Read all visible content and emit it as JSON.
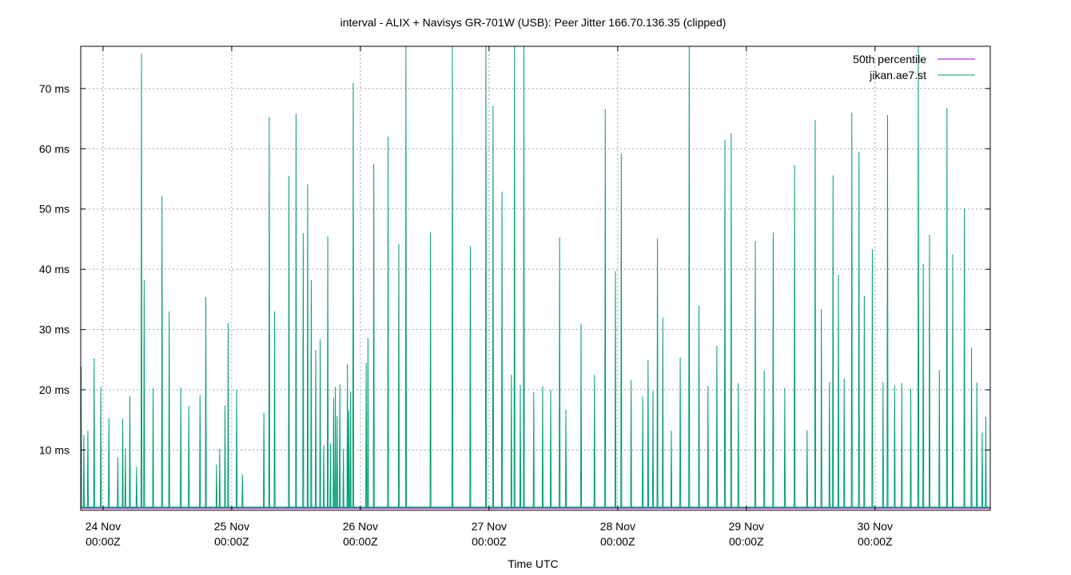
{
  "chart_data": {
    "type": "line",
    "title": "interval - ALIX + Navisys GR-701W (USB): Peer Jitter 166.70.136.35 (clipped)",
    "xlabel": "Time UTC",
    "ylabel": "",
    "ylim": [
      0,
      77
    ],
    "xlim": [
      "2023-11-23T19:50Z",
      "2023-11-30T21:30Z"
    ],
    "grid": true,
    "legend_position": "top-right",
    "y_ticks": [
      {
        "value": 10,
        "label": "10 ms"
      },
      {
        "value": 20,
        "label": "20 ms"
      },
      {
        "value": 30,
        "label": "30 ms"
      },
      {
        "value": 40,
        "label": "40 ms"
      },
      {
        "value": 50,
        "label": "50 ms"
      },
      {
        "value": 60,
        "label": "60 ms"
      },
      {
        "value": 70,
        "label": "70 ms"
      }
    ],
    "x_ticks": [
      {
        "time": "2023-11-24T00:00Z",
        "line1": "24 Nov",
        "line2": "00:00Z"
      },
      {
        "time": "2023-11-25T00:00Z",
        "line1": "25 Nov",
        "line2": "00:00Z"
      },
      {
        "time": "2023-11-26T00:00Z",
        "line1": "26 Nov",
        "line2": "00:00Z"
      },
      {
        "time": "2023-11-27T00:00Z",
        "line1": "27 Nov",
        "line2": "00:00Z"
      },
      {
        "time": "2023-11-28T00:00Z",
        "line1": "28 Nov",
        "line2": "00:00Z"
      },
      {
        "time": "2023-11-29T00:00Z",
        "line1": "29 Nov",
        "line2": "00:00Z"
      },
      {
        "time": "2023-11-30T00:00Z",
        "line1": "30 Nov",
        "line2": "00:00Z"
      }
    ],
    "series": [
      {
        "name": "50th percentile",
        "color": "#9400d3",
        "x": [
          "2023-11-23T19:50Z",
          "2023-11-30T21:30Z"
        ],
        "values": [
          0.3,
          0.3
        ]
      },
      {
        "name": "jikan.ae7.st",
        "color": "#009e73",
        "x": [
          "2023-11-23T19:55Z",
          "2023-11-23T20:25Z",
          "2023-11-23T21:10Z",
          "2023-11-23T22:20Z",
          "2023-11-23T23:35Z",
          "2023-11-24T01:05Z",
          "2023-11-24T02:45Z",
          "2023-11-24T03:40Z",
          "2023-11-24T04:10Z",
          "2023-11-24T05:00Z",
          "2023-11-24T06:15Z",
          "2023-11-24T07:10Z",
          "2023-11-24T07:40Z",
          "2023-11-24T09:20Z",
          "2023-11-24T11:00Z",
          "2023-11-24T12:20Z",
          "2023-11-24T14:30Z",
          "2023-11-24T16:00Z",
          "2023-11-24T18:05Z",
          "2023-11-24T19:10Z",
          "2023-11-24T21:10Z",
          "2023-11-24T21:45Z",
          "2023-11-24T22:45Z",
          "2023-11-24T23:20Z",
          "2023-11-25T00:55Z",
          "2023-11-25T02:00Z",
          "2023-11-25T06:00Z",
          "2023-11-25T07:00Z",
          "2023-11-25T08:00Z",
          "2023-11-25T10:40Z",
          "2023-11-25T12:00Z",
          "2023-11-25T13:20Z",
          "2023-11-25T14:10Z",
          "2023-11-25T14:50Z",
          "2023-11-25T15:40Z",
          "2023-11-25T16:30Z",
          "2023-11-25T17:10Z",
          "2023-11-25T17:55Z",
          "2023-11-25T18:25Z",
          "2023-11-25T19:00Z",
          "2023-11-25T19:20Z",
          "2023-11-25T19:40Z",
          "2023-11-25T20:10Z",
          "2023-11-25T20:50Z",
          "2023-11-25T21:35Z",
          "2023-11-25T21:50Z",
          "2023-11-25T22:10Z",
          "2023-11-25T22:40Z",
          "2023-11-26T01:05Z",
          "2023-11-26T01:25Z",
          "2023-11-26T02:30Z",
          "2023-11-26T05:10Z",
          "2023-11-26T07:10Z",
          "2023-11-26T08:30Z",
          "2023-11-26T13:05Z",
          "2023-11-26T17:10Z",
          "2023-11-26T20:30Z",
          "2023-11-26T23:25Z",
          "2023-11-27T00:45Z",
          "2023-11-27T02:25Z",
          "2023-11-27T04:10Z",
          "2023-11-27T04:45Z",
          "2023-11-27T05:50Z",
          "2023-11-27T06:30Z",
          "2023-11-27T08:20Z",
          "2023-11-27T10:00Z",
          "2023-11-27T11:30Z",
          "2023-11-27T13:10Z",
          "2023-11-27T14:20Z",
          "2023-11-27T17:10Z",
          "2023-11-27T19:40Z",
          "2023-11-27T21:40Z",
          "2023-11-27T23:35Z",
          "2023-11-28T00:40Z",
          "2023-11-28T02:30Z",
          "2023-11-28T04:40Z",
          "2023-11-28T05:40Z",
          "2023-11-28T06:35Z",
          "2023-11-28T07:25Z",
          "2023-11-28T08:25Z",
          "2023-11-28T10:00Z",
          "2023-11-28T11:40Z",
          "2023-11-28T13:20Z",
          "2023-11-28T15:10Z",
          "2023-11-28T16:50Z",
          "2023-11-28T18:30Z",
          "2023-11-28T20:00Z",
          "2023-11-28T21:10Z",
          "2023-11-28T22:30Z",
          "2023-11-29T01:40Z",
          "2023-11-29T03:20Z",
          "2023-11-29T05:00Z",
          "2023-11-29T07:10Z",
          "2023-11-29T09:00Z",
          "2023-11-29T11:20Z",
          "2023-11-29T12:50Z",
          "2023-11-29T14:00Z",
          "2023-11-29T15:30Z",
          "2023-11-29T16:10Z",
          "2023-11-29T17:10Z",
          "2023-11-29T18:15Z",
          "2023-11-29T19:40Z",
          "2023-11-29T21:00Z",
          "2023-11-29T22:00Z",
          "2023-11-29T23:30Z",
          "2023-11-30T01:30Z",
          "2023-11-30T02:20Z",
          "2023-11-30T03:40Z",
          "2023-11-30T05:00Z",
          "2023-11-30T06:40Z",
          "2023-11-30T08:05Z",
          "2023-11-30T09:00Z",
          "2023-11-30T10:10Z",
          "2023-11-30T12:00Z",
          "2023-11-30T13:25Z",
          "2023-11-30T14:30Z",
          "2023-11-30T16:40Z",
          "2023-11-30T18:00Z",
          "2023-11-30T19:00Z",
          "2023-11-30T20:00Z",
          "2023-11-30T20:40Z"
        ],
        "values": [
          23.8,
          12.5,
          13.2,
          25.3,
          20.5,
          15.3,
          8.8,
          15.2,
          10.3,
          19.0,
          7.2,
          75.8,
          38.2,
          20.3,
          52.2,
          33.0,
          20.4,
          17.3,
          19.1,
          35.4,
          7.6,
          10.2,
          17.4,
          31.1,
          20.0,
          6.0,
          16.2,
          65.3,
          33.0,
          55.5,
          65.8,
          46.0,
          54.1,
          38.2,
          26.6,
          28.4,
          10.8,
          45.5,
          11.1,
          18.7,
          20.5,
          15.6,
          20.9,
          10.2,
          24.3,
          16.6,
          19.7,
          70.9,
          24.5,
          28.6,
          57.5,
          62.0,
          44.2,
          77.0,
          46.1,
          77.0,
          43.8,
          77.0,
          67.1,
          52.9,
          22.5,
          77.0,
          20.8,
          77.0,
          19.6,
          20.6,
          20.0,
          45.3,
          16.7,
          31.0,
          22.5,
          66.6,
          39.7,
          59.2,
          21.6,
          18.9,
          24.9,
          19.8,
          45.1,
          32.0,
          13.2,
          25.4,
          77.0,
          34.0,
          20.6,
          27.3,
          61.5,
          62.6,
          21.1,
          44.7,
          23.2,
          46.1,
          20.3,
          57.3,
          13.3,
          64.8,
          33.4,
          21.3,
          55.6,
          39.1,
          21.9,
          66.0,
          59.5,
          35.6,
          43.3,
          21.3,
          65.6,
          20.7,
          21.1,
          20.2,
          77.0,
          40.9,
          45.7,
          23.3,
          66.8,
          42.5,
          50.1,
          27.0,
          21.2,
          12.9,
          15.5
        ]
      }
    ]
  }
}
